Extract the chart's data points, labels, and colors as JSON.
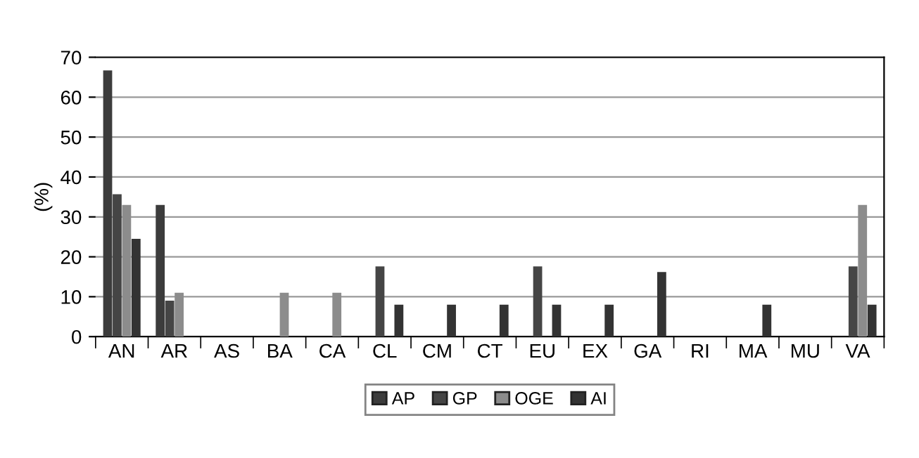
{
  "chart_data": {
    "type": "bar",
    "ylabel": "(%)",
    "categories": [
      "AN",
      "AR",
      "AS",
      "BA",
      "CA",
      "CL",
      "CM",
      "CT",
      "EU",
      "EX",
      "GA",
      "RI",
      "MA",
      "MU",
      "VA"
    ],
    "series": [
      {
        "name": "AP",
        "color": "#3c3c3c",
        "values": [
          66.7,
          33,
          0,
          0,
          0,
          0,
          0,
          0,
          0,
          0,
          0,
          0,
          0,
          0,
          0
        ]
      },
      {
        "name": "GP",
        "color": "#454545",
        "values": [
          35.7,
          9,
          0,
          0,
          0,
          17.6,
          0,
          0,
          17.6,
          0,
          0,
          0,
          0,
          0,
          17.6
        ]
      },
      {
        "name": "OGE",
        "color": "#8c8c8c",
        "values": [
          33,
          11,
          0,
          11,
          11,
          0,
          0,
          0,
          0,
          0,
          0,
          0,
          0,
          0,
          33
        ]
      },
      {
        "name": "AI",
        "color": "#333333",
        "values": [
          24.5,
          0,
          0,
          0,
          0,
          8,
          8,
          8,
          8,
          8,
          16.2,
          0,
          8,
          0,
          8
        ]
      }
    ],
    "ylim": [
      0,
      70
    ],
    "yticks": [
      0,
      10,
      20,
      30,
      40,
      50,
      60,
      70
    ],
    "grid": "y",
    "legend": "bottom"
  }
}
